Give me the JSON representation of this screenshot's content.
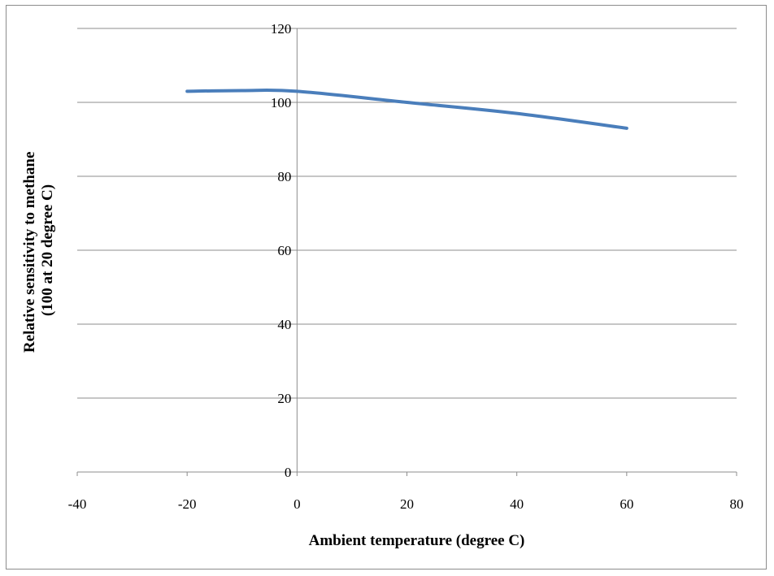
{
  "chart_data": {
    "type": "line",
    "title": "",
    "xlabel": "Ambient temperature (degree C)",
    "ylabel_lines": [
      "Relative sensitivity to methane",
      "(100 at 20 degree C)"
    ],
    "xlim": [
      -40,
      80
    ],
    "ylim": [
      0,
      120
    ],
    "x_ticks": [
      -40,
      -20,
      0,
      20,
      40,
      60,
      80
    ],
    "y_ticks": [
      0,
      20,
      40,
      60,
      80,
      100,
      120
    ],
    "x_tick_labels": [
      "-40",
      "-20",
      "0",
      "20",
      "40",
      "60",
      "80"
    ],
    "y_tick_labels": [
      "0",
      "20",
      "40",
      "60",
      "80",
      "100",
      "120"
    ],
    "grid": {
      "horizontal": true,
      "vertical": false
    },
    "legend": "none",
    "series": [
      {
        "color": "#4a7ebb",
        "x": [
          -20,
          -10,
          0,
          20,
          40,
          60
        ],
        "y": [
          103,
          103.2,
          103,
          100,
          97,
          93
        ]
      }
    ]
  }
}
